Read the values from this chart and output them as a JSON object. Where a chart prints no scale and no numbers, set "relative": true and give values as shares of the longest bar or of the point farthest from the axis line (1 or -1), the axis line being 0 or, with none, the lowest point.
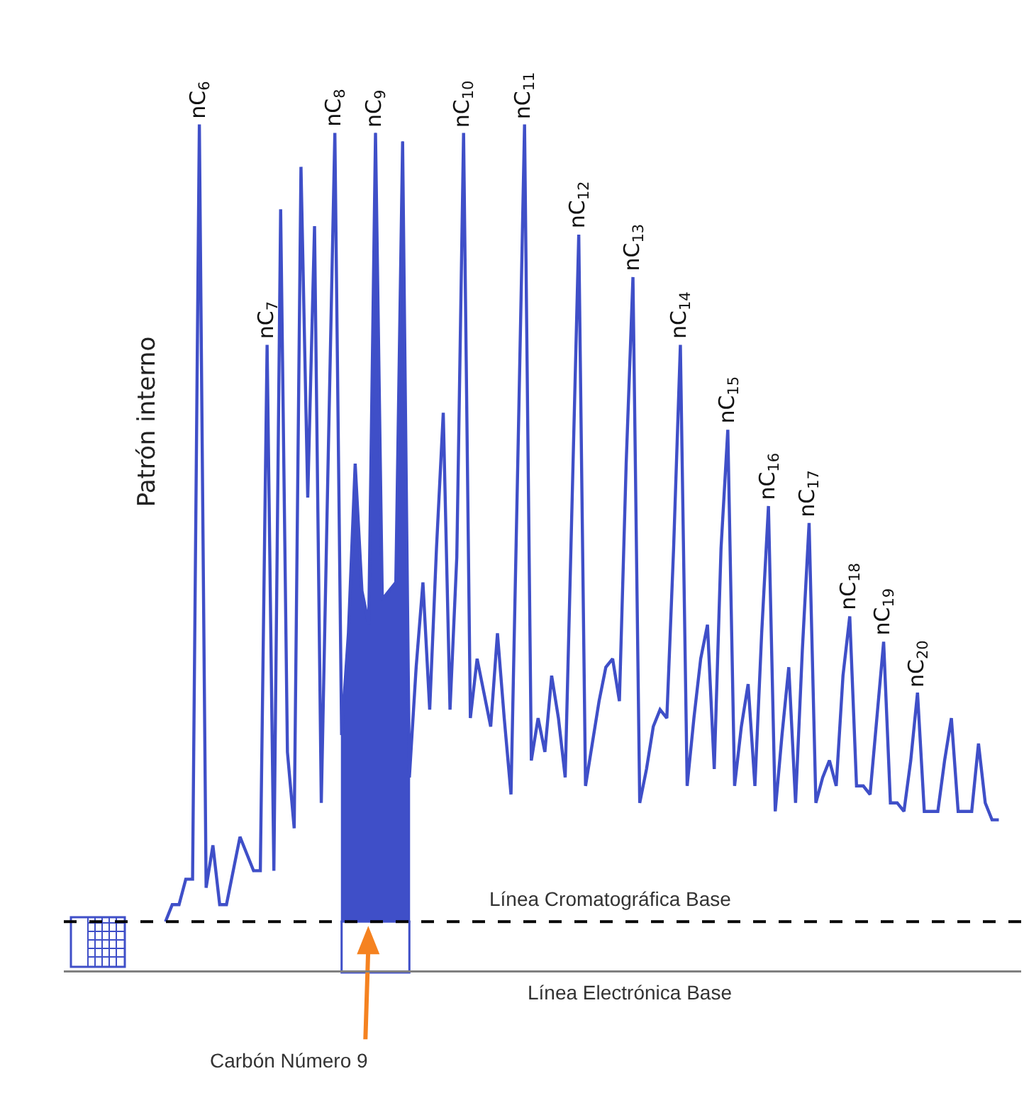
{
  "chart_data": {
    "type": "line",
    "relative": true,
    "marker": "none",
    "line_style": "solid",
    "categories": [
      null,
      null,
      null,
      null,
      null,
      null,
      null,
      null,
      null,
      null,
      null,
      null,
      null,
      null,
      null,
      null,
      null,
      null,
      null,
      null,
      null,
      null,
      null,
      null,
      null,
      null,
      null,
      null,
      null,
      null,
      null,
      null,
      null,
      null,
      null,
      null,
      null,
      null,
      null,
      null,
      null,
      null,
      null,
      null,
      null,
      null,
      null,
      null,
      null,
      null,
      null,
      null,
      null,
      null,
      null,
      null,
      null,
      null,
      null,
      null,
      null,
      null,
      null,
      null,
      null,
      null,
      null,
      null,
      null,
      null,
      null,
      null,
      null,
      null,
      null,
      null,
      null,
      null,
      null,
      null,
      null,
      null,
      null,
      null,
      null,
      null,
      null,
      null,
      null,
      null,
      null,
      null,
      null,
      null,
      null,
      null,
      null,
      null,
      null,
      null,
      null,
      null,
      null,
      null,
      null,
      null,
      null,
      null,
      null,
      null,
      null,
      null,
      null,
      null,
      null,
      null,
      null,
      null,
      null,
      null,
      null,
      null,
      null,
      null
    ],
    "series": [
      {
        "color": "#3f4fc8",
        "values": [
          0.06,
          0.08,
          0.08,
          0.11,
          0.11,
          1.0,
          0.1,
          0.15,
          0.08,
          0.08,
          0.12,
          0.16,
          0.14,
          0.12,
          0.12,
          0.74,
          0.12,
          0.9,
          0.26,
          0.17,
          0.95,
          0.56,
          0.88,
          0.2,
          0.6,
          0.99,
          0.28,
          0.4,
          0.6,
          0.45,
          0.41,
          0.99,
          0.44,
          0.45,
          0.46,
          0.98,
          0.23,
          0.36,
          0.46,
          0.31,
          0.5,
          0.66,
          0.31,
          0.49,
          0.99,
          0.3,
          0.37,
          0.33,
          0.29,
          0.4,
          0.3,
          0.21,
          0.6,
          1.0,
          0.25,
          0.3,
          0.26,
          0.35,
          0.3,
          0.23,
          0.55,
          0.87,
          0.22,
          0.27,
          0.32,
          0.36,
          0.37,
          0.32,
          0.6,
          0.82,
          0.2,
          0.24,
          0.29,
          0.31,
          0.3,
          0.5,
          0.74,
          0.22,
          0.3,
          0.37,
          0.41,
          0.24,
          0.5,
          0.64,
          0.22,
          0.29,
          0.34,
          0.22,
          0.4,
          0.55,
          0.19,
          0.28,
          0.36,
          0.2,
          0.38,
          0.53,
          0.2,
          0.23,
          0.25,
          0.22,
          0.35,
          0.42,
          0.22,
          0.22,
          0.21,
          0.3,
          0.39,
          0.2,
          0.2,
          0.19,
          0.25,
          0.33,
          0.19,
          0.19,
          0.19,
          0.25,
          0.3,
          0.19,
          0.19,
          0.19,
          0.27,
          0.2,
          0.18,
          0.18
        ]
      }
    ],
    "ref_lines": [
      {
        "axis": "y",
        "value": 0.06,
        "label": "Línea Cromatográfica Base",
        "line_style": "dashed",
        "color": "#000000"
      },
      {
        "axis": "y",
        "value": 0,
        "label": "Línea Electrónica Base",
        "color": "#808080"
      }
    ],
    "annotations": [
      "Patrón interno",
      "Carbón Número 9",
      {
        "text": "nC$_{6}$",
        "y": 1.0
      },
      {
        "text": "nC$_{7}$",
        "y": 0.74
      },
      {
        "text": "nC$_{8}$",
        "y": 0.99
      },
      {
        "text": "nC$_{9}$",
        "y": 0.99
      },
      {
        "text": "nC$_{10}$",
        "y": 0.99
      },
      {
        "text": "nC$_{11}$",
        "y": 1.0
      },
      {
        "text": "nC$_{12}$",
        "y": 0.87
      },
      {
        "text": "nC$_{13}$",
        "y": 0.82
      },
      {
        "text": "nC$_{14}$",
        "y": 0.74
      },
      {
        "text": "nC$_{15}$",
        "y": 0.64
      },
      {
        "text": "nC$_{16}$",
        "y": 0.55
      },
      {
        "text": "nC$_{17}$",
        "y": 0.53
      },
      {
        "text": "nC$_{18}$",
        "y": 0.42
      },
      {
        "text": "nC$_{19}$",
        "y": 0.39
      },
      {
        "text": "nC$_{20}$",
        "y": 0.33
      }
    ]
  }
}
